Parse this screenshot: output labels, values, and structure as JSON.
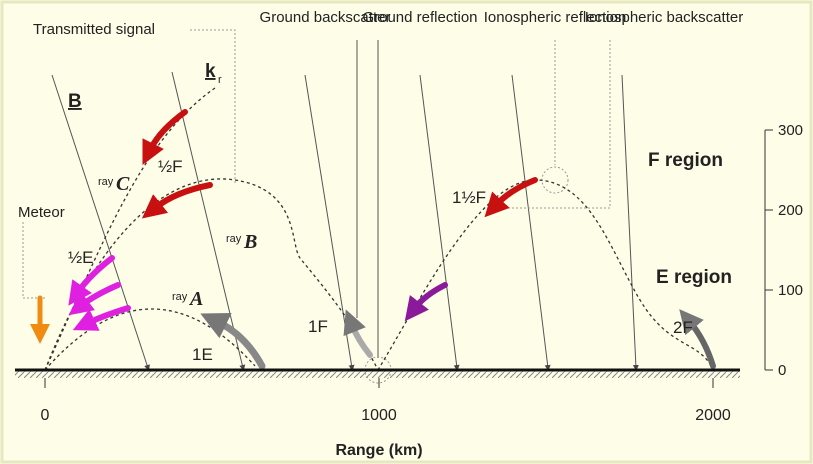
{
  "header_labels": [
    "Transmitted signal",
    "Ground backscatter",
    "Ground reflection",
    "Ionospheric reflection",
    "Ionospheric backscatter"
  ],
  "labels": {
    "field": "B",
    "wave_vector": "k",
    "wave_vector_sub": "r",
    "ray_prefix": "ray",
    "ray_a": "A",
    "ray_b": "B",
    "ray_c": "C",
    "half_f": "½F",
    "meteor": "Meteor",
    "half_e": "½E",
    "one_e": "1E",
    "one_f": "1F",
    "one_half_f": "1½F",
    "two_f": "2F",
    "f_region": "F region",
    "e_region": "E region"
  },
  "x_axis": {
    "title": "Range (km)",
    "ticks": [
      0,
      1000,
      2000
    ]
  },
  "height_axis": {
    "ticks": [
      0,
      100,
      200,
      300
    ]
  }
}
